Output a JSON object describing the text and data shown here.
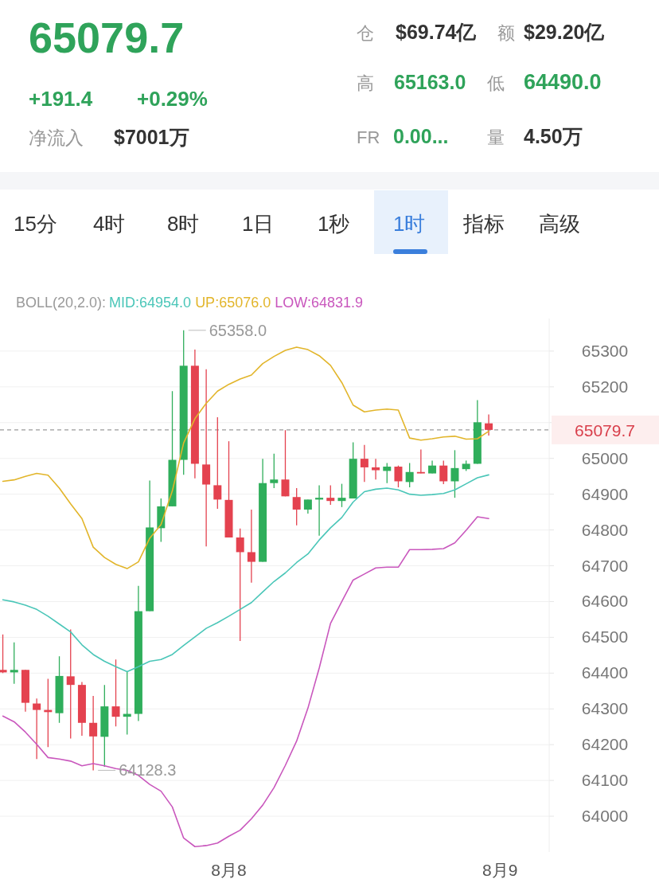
{
  "chart_data": [
    {
      "type": "other",
      "title": "65079.7",
      "annotations": [
        "+191.4",
        "+0.29%",
        "净流入",
        "$7001万",
        "仓",
        "$69.74亿",
        "额",
        "$29.20亿",
        "高",
        "65163.0",
        "低",
        "64490.0",
        "FR",
        "0.00...",
        "量",
        "4.50万",
        "15分",
        "4时",
        "8时",
        "1日",
        "1秒",
        "1时",
        "指标",
        "高级"
      ]
    },
    {
      "type": "candlestick",
      "legend_title": "BOLL(20,2.0):",
      "legend": "top",
      "grid": "y",
      "categories": [
        null,
        null,
        null,
        null,
        null,
        null,
        null,
        null,
        null,
        null,
        null,
        null,
        null,
        null,
        null,
        null,
        null,
        null,
        null,
        null,
        "8月8",
        null,
        null,
        null,
        null,
        null,
        null,
        null,
        null,
        null,
        null,
        null,
        null,
        null,
        null,
        null,
        null,
        null,
        null,
        null,
        null,
        null,
        null,
        null,
        "8月9"
      ],
      "ohlc": [
        [
          64409,
          64508,
          64400,
          64402
        ],
        [
          64402,
          64486,
          64370,
          64409
        ],
        [
          64409,
          64409,
          64292,
          64317
        ],
        [
          64315,
          64329,
          64160,
          64297
        ],
        [
          64297,
          64384,
          64193,
          64291
        ],
        [
          64288,
          64447,
          64261,
          64392
        ],
        [
          64391,
          64522,
          64217,
          64367
        ],
        [
          64367,
          64375,
          64225,
          64261
        ],
        [
          64261,
          64336,
          64128.3,
          64223
        ],
        [
          64222,
          64367,
          64138,
          64307
        ],
        [
          64307,
          64438,
          64251,
          64278
        ],
        [
          64278,
          64404,
          64228,
          64286
        ],
        [
          64286,
          64644,
          64266,
          64573
        ],
        [
          64573,
          64938,
          64573,
          64807
        ],
        [
          64805,
          64888,
          64767,
          64866
        ],
        [
          64866,
          65188,
          64866,
          64996
        ],
        [
          64996,
          65358,
          64954,
          65259
        ],
        [
          65259,
          65304,
          64944,
          64985
        ],
        [
          64983,
          65249,
          64754,
          64927
        ],
        [
          64925,
          65115,
          64859,
          64885
        ],
        [
          64884,
          65048,
          64779,
          64779
        ],
        [
          64779,
          64804,
          64490,
          64738
        ],
        [
          64738,
          64857,
          64653,
          64711
        ],
        [
          64711,
          64999,
          64711,
          64931
        ],
        [
          64931,
          65013,
          64917,
          64941
        ],
        [
          64941,
          65079,
          64894,
          64894
        ],
        [
          64892,
          64917,
          64813,
          64857
        ],
        [
          64857,
          64885,
          64846,
          64885
        ],
        [
          64885,
          64925,
          64784,
          64890
        ],
        [
          64890,
          64925,
          64870,
          64881
        ],
        [
          64881,
          64929,
          64864,
          64890
        ],
        [
          64888,
          65045,
          64888,
          64999
        ],
        [
          64999,
          65038,
          64934,
          64975
        ],
        [
          64975,
          64999,
          64941,
          64967
        ],
        [
          64965,
          64987,
          64931,
          64977
        ],
        [
          64977,
          64980,
          64919,
          64936
        ],
        [
          64934,
          64987,
          64919,
          64962
        ],
        [
          64962,
          65025,
          64958,
          64958
        ],
        [
          64958,
          64994,
          64958,
          64980
        ],
        [
          64980,
          64994,
          64928,
          64936
        ],
        [
          64936,
          65023,
          64890,
          64973
        ],
        [
          64970,
          64994,
          64965,
          64985
        ],
        [
          64985,
          65163,
          64985,
          65101
        ],
        [
          65098,
          65123,
          65064,
          65079.7
        ],
        null
      ],
      "colors": [
        "#e4424f",
        "#2fae5b",
        "#e4424f",
        "#e4424f",
        "#e4424f",
        "#2fae5b",
        "#e4424f",
        "#e4424f",
        "#e4424f",
        "#2fae5b",
        "#e4424f",
        "#2fae5b",
        "#2fae5b",
        "#2fae5b",
        "#2fae5b",
        "#2fae5b",
        "#2fae5b",
        "#e4424f",
        "#e4424f",
        "#e4424f",
        "#e4424f",
        "#e4424f",
        "#e4424f",
        "#2fae5b",
        "#2fae5b",
        "#e4424f",
        "#e4424f",
        "#2fae5b",
        "#2fae5b",
        "#e4424f",
        "#2fae5b",
        "#2fae5b",
        "#e4424f",
        "#e4424f",
        "#2fae5b",
        "#e4424f",
        "#2fae5b",
        "#e4424f",
        "#2fae5b",
        "#e4424f",
        "#2fae5b",
        "#2fae5b",
        "#2fae5b",
        "#e4424f",
        null
      ],
      "series": [
        {
          "name": "MID:64954.0",
          "type": "line",
          "color": "#4ac6b8",
          "values": [
            64605,
            64599,
            64590,
            64578,
            64559,
            64537,
            64515,
            64479,
            64452,
            64433,
            64418,
            64404,
            64418,
            64433,
            64438,
            64452,
            64477,
            64501,
            64525,
            64541,
            64559,
            64578,
            64597,
            64627,
            64656,
            64680,
            64709,
            64733,
            64772,
            64806,
            64835,
            64878,
            64907,
            64914,
            64917,
            64912,
            64900,
            64897,
            64899,
            64902,
            64912,
            64929,
            64946,
            64954,
            null
          ]
        },
        {
          "name": "UP:65076.0",
          "type": "line",
          "color": "#e2b52a",
          "values": [
            64936,
            64940,
            64950,
            64958,
            64953,
            64917,
            64873,
            64832,
            64752,
            64723,
            64704,
            64692,
            64711,
            64777,
            64815,
            64909,
            65043,
            65111,
            65154,
            65188,
            65207,
            65222,
            65233,
            65265,
            65285,
            65302,
            65311,
            65304,
            65287,
            65260,
            65212,
            65149,
            65130,
            65135,
            65138,
            65135,
            65057,
            65051,
            65055,
            65060,
            65062,
            65054,
            65055,
            65076,
            null
          ]
        },
        {
          "name": "LOW:64831.9",
          "type": "line",
          "color": "#c957bd",
          "values": [
            64280,
            64264,
            64235,
            64201,
            64164,
            64160,
            64154,
            64141,
            64147,
            64141,
            64133,
            64128,
            64114,
            64089,
            64070,
            64026,
            63939,
            63915,
            63918,
            63925,
            63944,
            63961,
            63993,
            64031,
            64080,
            64142,
            64210,
            64302,
            64414,
            64539,
            64600,
            64660,
            64677,
            64694,
            64696,
            64696,
            64745,
            64745,
            64746,
            64748,
            64764,
            64799,
            64837,
            64832,
            null
          ]
        }
      ],
      "ylim": [
        63900,
        65391
      ],
      "yticks": [
        64000,
        64100,
        64200,
        64300,
        64400,
        64500,
        64600,
        64700,
        64800,
        64900,
        65000,
        {
          "value": 65100,
          "label": null
        },
        65200,
        65300
      ],
      "ref_lines": [
        {
          "axis": "y",
          "value": 65079.7,
          "label": "65079.7",
          "color": "#9a9a9a",
          "line_style": "dashed"
        }
      ],
      "annotations": [
        "65358.0",
        "64128.3"
      ]
    }
  ]
}
